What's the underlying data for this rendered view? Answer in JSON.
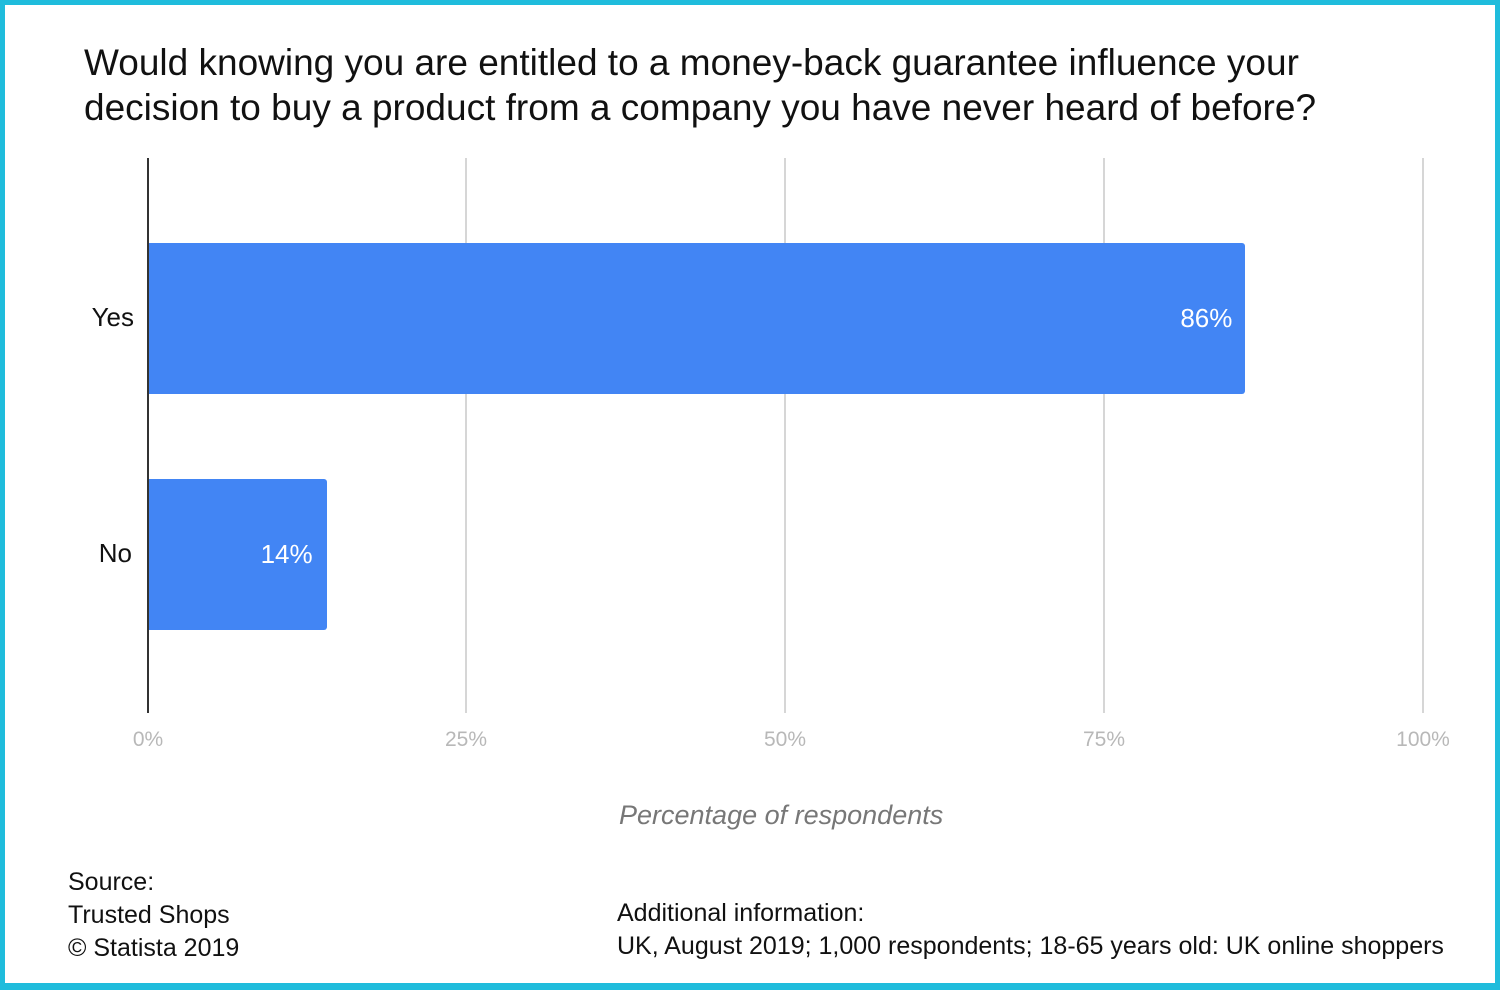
{
  "chart_data": {
    "type": "bar",
    "orientation": "horizontal",
    "title": "Would knowing you are entitled to a money-back guarantee influence your decision to buy a product from a company you have never heard of before?",
    "categories": [
      "Yes",
      "No"
    ],
    "values": [
      86,
      14
    ],
    "value_labels": [
      "86%",
      "14%"
    ],
    "xlabel": "Percentage of respondents",
    "ylabel": "",
    "xlim": [
      0,
      100
    ],
    "x_ticks": [
      "0%",
      "25%",
      "50%",
      "75%",
      "100%"
    ],
    "grid": true,
    "legend": null,
    "bar_color": "#4285f4"
  },
  "footer": {
    "source_heading": "Source:",
    "source_name": "Trusted Shops",
    "copyright": "© Statista 2019",
    "additional_heading": "Additional information:",
    "additional_text": "UK, August 2019; 1,000 respondents; 18-65 years old: UK online shoppers"
  },
  "colors": {
    "frame_border": "#1fbcdc",
    "bar": "#4285f4"
  }
}
